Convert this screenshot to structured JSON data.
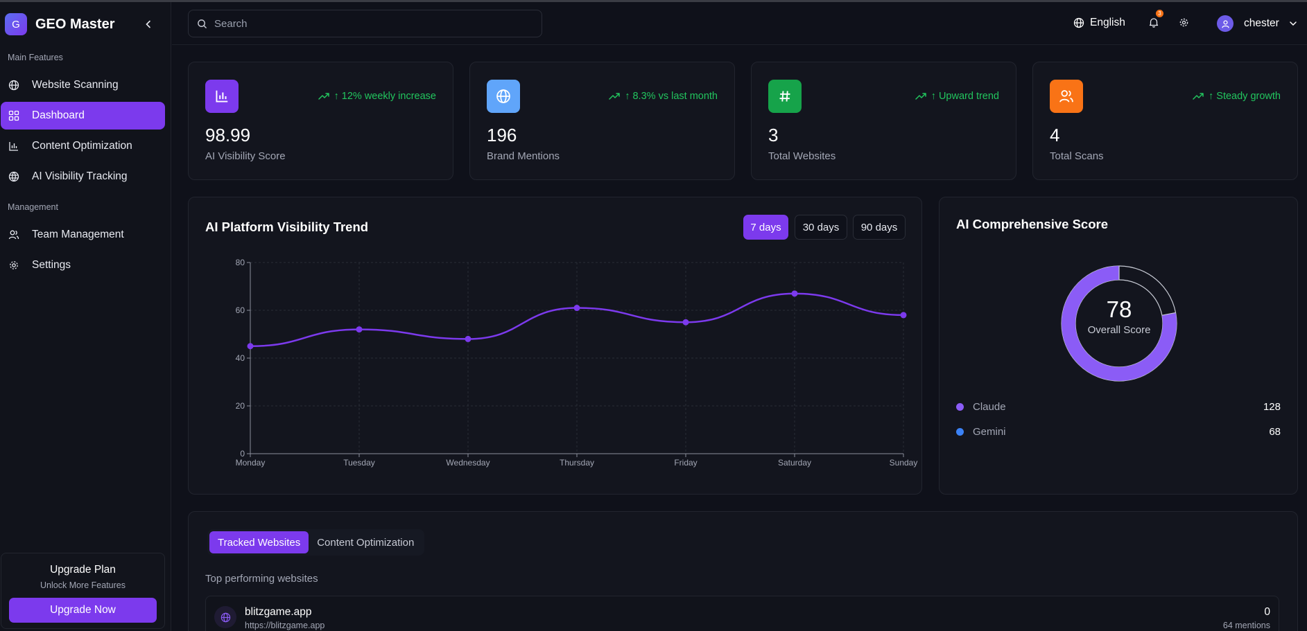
{
  "app": {
    "logo_letter": "G",
    "name": "GEO Master"
  },
  "sidebar": {
    "sections": [
      {
        "label": "Main Features"
      },
      {
        "label": "Management"
      }
    ],
    "items": [
      {
        "label": "Website Scanning",
        "icon": "globe-icon"
      },
      {
        "label": "Dashboard",
        "icon": "grid-icon",
        "active": true
      },
      {
        "label": "Content Optimization",
        "icon": "bar-chart-icon"
      },
      {
        "label": "AI Visibility Tracking",
        "icon": "globe-grid-icon"
      },
      {
        "label": "Team Management",
        "icon": "users-icon"
      },
      {
        "label": "Settings",
        "icon": "gear-icon"
      }
    ],
    "upgrade": {
      "title": "Upgrade Plan",
      "subtitle": "Unlock More Features",
      "button": "Upgrade Now"
    }
  },
  "header": {
    "search_placeholder": "Search",
    "language": "English",
    "notification_count": "3",
    "user_name": "chester"
  },
  "stats": [
    {
      "value": "98.99",
      "label": "AI Visibility Score",
      "trend": "↑ 12% weekly increase",
      "icon": "bar-chart-icon",
      "color": "#7c3aed"
    },
    {
      "value": "196",
      "label": "Brand Mentions",
      "trend": "↑ 8.3% vs last month",
      "icon": "globe-icon",
      "color": "#60a5fa"
    },
    {
      "value": "3",
      "label": "Total Websites",
      "trend": "↑ Upward trend",
      "icon": "hash-icon",
      "color": "#16a34a"
    },
    {
      "value": "4",
      "label": "Total Scans",
      "trend": "↑ Steady growth",
      "icon": "users-icon",
      "color": "#f97316"
    }
  ],
  "trend_card": {
    "title": "AI Platform Visibility Trend",
    "ranges": [
      "7 days",
      "30 days",
      "90 days"
    ],
    "active_range": "7 days"
  },
  "chart_data": {
    "type": "line",
    "title": "AI Platform Visibility Trend",
    "categories": [
      "Monday",
      "Tuesday",
      "Wednesday",
      "Thursday",
      "Friday",
      "Saturday",
      "Sunday"
    ],
    "series": [
      {
        "values": [
          45,
          52,
          48,
          61,
          55,
          67,
          58
        ]
      }
    ],
    "ylim": [
      0,
      80
    ],
    "yticks": [
      0,
      20,
      40,
      60,
      80
    ],
    "grid": true,
    "line_color": "#7c3aed"
  },
  "score_card": {
    "title": "AI Comprehensive Score",
    "score": 78,
    "score_label": "Overall Score",
    "legend": [
      {
        "name": "Claude",
        "value": "128",
        "color": "#8b5cf6"
      },
      {
        "name": "Gemini",
        "value": "68",
        "color": "#3b82f6"
      }
    ]
  },
  "websites": {
    "tabs": [
      "Tracked Websites",
      "Content Optimization"
    ],
    "active_tab": "Tracked Websites",
    "subtitle": "Top performing websites",
    "rows": [
      {
        "name": "blitzgame.app",
        "url": "https://blitzgame.app",
        "count": "0",
        "mentions": "64 mentions"
      }
    ]
  }
}
